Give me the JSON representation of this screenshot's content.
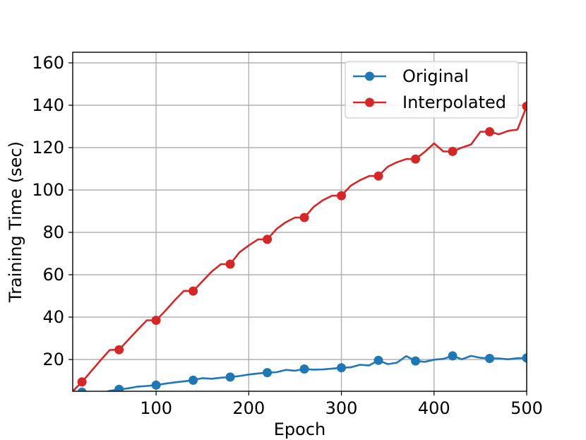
{
  "chart_data": {
    "type": "line",
    "title": "",
    "xlabel": "Epoch",
    "ylabel": "Training Time (sec)",
    "xlim": [
      10,
      500
    ],
    "ylim": [
      5,
      165
    ],
    "xticks": [
      100,
      200,
      300,
      400,
      500
    ],
    "yticks": [
      20,
      40,
      60,
      80,
      100,
      120,
      140,
      160
    ],
    "grid": true,
    "legend_position": "top-right",
    "series": [
      {
        "name": "Original",
        "color": "#1f77b4",
        "x": [
          10,
          20,
          30,
          40,
          50,
          60,
          70,
          80,
          90,
          100,
          110,
          120,
          130,
          140,
          150,
          160,
          170,
          180,
          190,
          200,
          210,
          220,
          230,
          240,
          250,
          260,
          270,
          280,
          290,
          300,
          310,
          320,
          330,
          340,
          350,
          360,
          370,
          380,
          390,
          400,
          410,
          420,
          430,
          440,
          450,
          460,
          470,
          480,
          490,
          500
        ],
        "y": [
          4.2,
          4.6,
          3.2,
          3.9,
          5.2,
          5.9,
          6.4,
          7.2,
          7.5,
          7.9,
          8.6,
          9.2,
          9.7,
          10.2,
          11.2,
          10.9,
          11.4,
          11.7,
          12.2,
          12.9,
          13.4,
          13.8,
          14.0,
          15.1,
          14.7,
          15.5,
          15.2,
          15.3,
          15.7,
          16.1,
          16.3,
          17.5,
          17.2,
          19.6,
          17.8,
          18.5,
          21.6,
          19.3,
          18.9,
          19.9,
          20.3,
          21.7,
          20.1,
          21.7,
          20.8,
          20.5,
          20.5,
          20.1,
          20.6,
          20.7
        ],
        "markers_every": 4
      },
      {
        "name": "Interpolated",
        "color": "#d62728",
        "x": [
          10,
          20,
          30,
          40,
          50,
          60,
          70,
          80,
          90,
          100,
          110,
          120,
          130,
          140,
          150,
          160,
          170,
          180,
          190,
          200,
          210,
          220,
          230,
          240,
          250,
          260,
          270,
          280,
          290,
          300,
          310,
          320,
          330,
          340,
          350,
          360,
          370,
          380,
          390,
          400,
          410,
          420,
          430,
          440,
          450,
          460,
          470,
          480,
          490,
          500
        ],
        "y": [
          5.0,
          9.4,
          14.5,
          19.6,
          24.5,
          24.6,
          29.3,
          34.0,
          38.5,
          38.5,
          43.0,
          47.9,
          52.4,
          52.3,
          56.9,
          61.5,
          65.0,
          65.0,
          70.6,
          73.8,
          76.7,
          76.7,
          81.6,
          84.8,
          87.0,
          87.0,
          92.0,
          95.2,
          97.3,
          97.3,
          102.0,
          104.6,
          106.6,
          106.6,
          111.0,
          113.1,
          114.6,
          114.6,
          118.0,
          122.0,
          118.2,
          118.2,
          120.0,
          121.5,
          127.5,
          127.5,
          126.3,
          127.9,
          128.5,
          139.5
        ],
        "markers_every": 4
      }
    ]
  }
}
